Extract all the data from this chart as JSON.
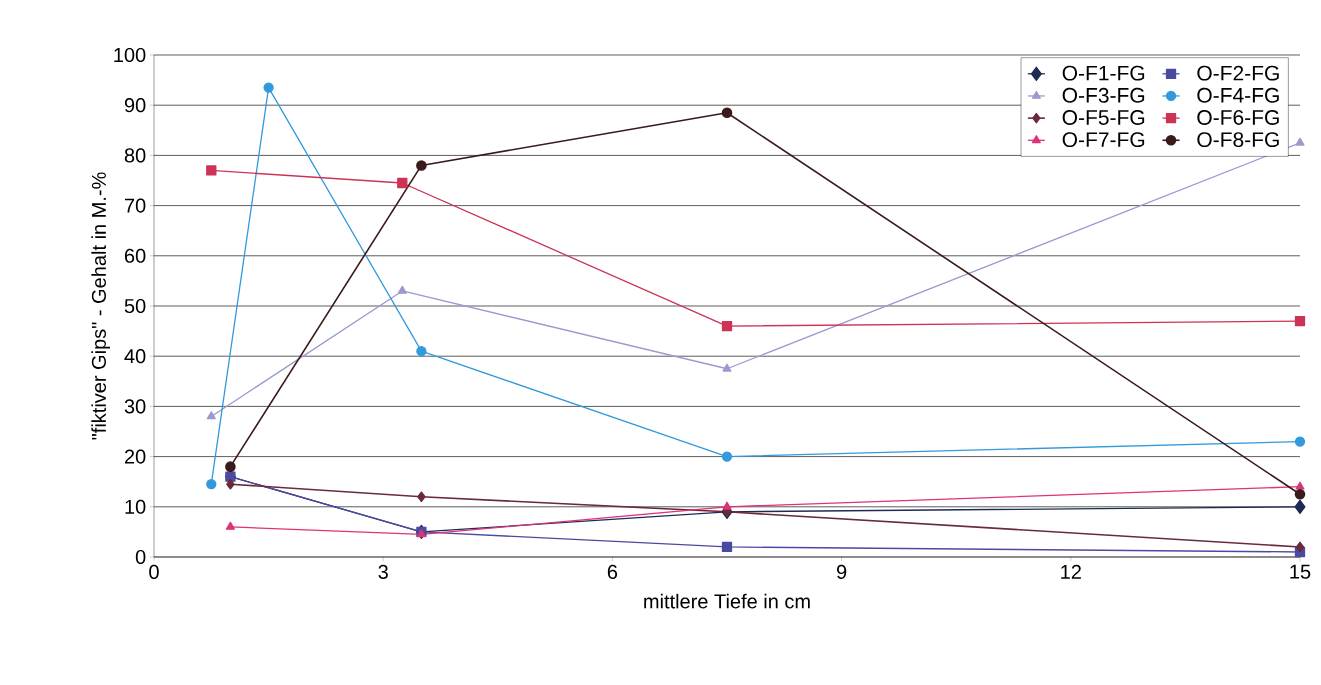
{
  "chart_data": {
    "type": "line",
    "xlabel": "mittlere Tiefe in cm",
    "ylabel": "\"fiktiver Gips\" - Gehalt in M.-%",
    "xlim": [
      0,
      15
    ],
    "xticks": [
      0,
      3,
      6,
      9,
      12,
      15
    ],
    "ylim": [
      0,
      100
    ],
    "yticks": [
      0,
      10,
      20,
      30,
      40,
      50,
      60,
      70,
      80,
      90,
      100
    ],
    "grid": "y",
    "legend": "top right",
    "line_style": "solid",
    "series": [
      {
        "name": "O-F1-FG",
        "color": "#1f2a55",
        "marker": "diamond",
        "x": [
          1,
          3.5,
          7.5,
          15
        ],
        "values": [
          16,
          5,
          9,
          10
        ]
      },
      {
        "name": "O-F2-FG",
        "color": "#4a4aa0",
        "marker": "square",
        "x": [
          1,
          3.5,
          7.5,
          15
        ],
        "values": [
          16,
          5,
          2,
          1
        ]
      },
      {
        "name": "O-F3-FG",
        "color": "#9a9ad0",
        "marker": "triangle",
        "x": [
          0.75,
          3.25,
          7.5,
          15
        ],
        "values": [
          28,
          53,
          37.5,
          82.5
        ]
      },
      {
        "name": "O-F4-FG",
        "color": "#3399dd",
        "marker": "circle",
        "x": [
          0.75,
          1.5,
          3.5,
          7.5,
          15
        ],
        "values": [
          14.5,
          93.5,
          41,
          20,
          23
        ]
      },
      {
        "name": "O-F5-FG",
        "color": "#6a2a3a",
        "marker": "diamond",
        "x": [
          1,
          3.5,
          7.5,
          15
        ],
        "values": [
          14.5,
          12,
          9,
          2
        ]
      },
      {
        "name": "O-F6-FG",
        "color": "#cc3355",
        "marker": "square",
        "x": [
          0.75,
          3.25,
          7.5,
          15
        ],
        "values": [
          77,
          74.5,
          46,
          47
        ]
      },
      {
        "name": "O-F7-FG",
        "color": "#dd3377",
        "marker": "triangle",
        "x": [
          1,
          3.5,
          7.5,
          15
        ],
        "values": [
          6,
          4.5,
          10,
          14
        ]
      },
      {
        "name": "O-F8-FG",
        "color": "#3a1a1a",
        "marker": "circle",
        "x": [
          1,
          3.5,
          7.5,
          15
        ],
        "values": [
          18,
          78,
          88.5,
          12.5
        ]
      }
    ]
  }
}
